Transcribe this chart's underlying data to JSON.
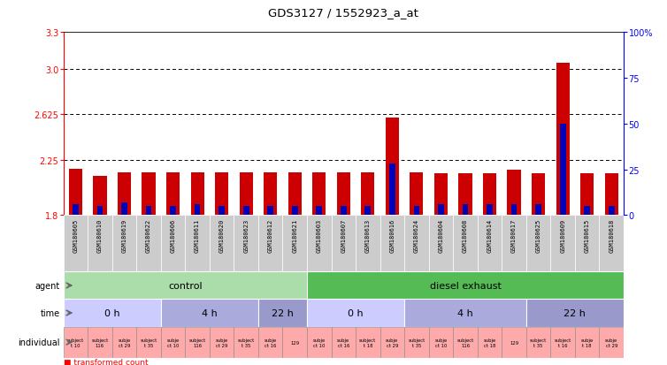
{
  "title": "GDS3127 / 1552923_a_at",
  "samples": [
    "GSM180605",
    "GSM180610",
    "GSM180619",
    "GSM180622",
    "GSM180606",
    "GSM180611",
    "GSM180620",
    "GSM180623",
    "GSM180612",
    "GSM180621",
    "GSM180603",
    "GSM180607",
    "GSM180613",
    "GSM180616",
    "GSM180624",
    "GSM180604",
    "GSM180608",
    "GSM180614",
    "GSM180617",
    "GSM180625",
    "GSM180609",
    "GSM180615",
    "GSM180618"
  ],
  "red_values": [
    2.18,
    2.12,
    2.15,
    2.15,
    2.15,
    2.15,
    2.15,
    2.15,
    2.15,
    2.15,
    2.15,
    2.15,
    2.15,
    2.6,
    2.15,
    2.14,
    2.14,
    2.14,
    2.17,
    2.14,
    3.05,
    2.14,
    2.14
  ],
  "blue_values": [
    6,
    5,
    7,
    5,
    5,
    6,
    5,
    5,
    5,
    5,
    5,
    5,
    5,
    28,
    5,
    6,
    6,
    6,
    6,
    6,
    50,
    5,
    5
  ],
  "ymin": 1.8,
  "ymax": 3.3,
  "yticks_left": [
    1.8,
    2.25,
    2.625,
    3.0,
    3.3
  ],
  "yticks_right": [
    0,
    25,
    50,
    75,
    100
  ],
  "y_right_labels": [
    "0",
    "25",
    "50",
    "75",
    "100%"
  ],
  "grid_values": [
    2.25,
    2.625,
    3.0
  ],
  "agent_groups": [
    {
      "label": "control",
      "start": 0,
      "end": 10,
      "color": "#AADDAA"
    },
    {
      "label": "diesel exhaust",
      "start": 10,
      "end": 23,
      "color": "#55BB55"
    }
  ],
  "time_groups": [
    {
      "label": "0 h",
      "start": 0,
      "end": 4,
      "color": "#CCCCFF"
    },
    {
      "label": "4 h",
      "start": 4,
      "end": 8,
      "color": "#AAAADD"
    },
    {
      "label": "22 h",
      "start": 8,
      "end": 10,
      "color": "#9999CC"
    },
    {
      "label": "0 h",
      "start": 10,
      "end": 14,
      "color": "#CCCCFF"
    },
    {
      "label": "4 h",
      "start": 14,
      "end": 19,
      "color": "#AAAADD"
    },
    {
      "label": "22 h",
      "start": 19,
      "end": 23,
      "color": "#9999CC"
    }
  ],
  "indiv_data": [
    [
      "subject\nt 10",
      0
    ],
    [
      "subject\n116",
      1
    ],
    [
      "subje\nct 29",
      2
    ],
    [
      "subject\nt 35",
      3
    ],
    [
      "subje\nct 10",
      4
    ],
    [
      "subject\n116",
      5
    ],
    [
      "subje\nct 29",
      6
    ],
    [
      "subject\nt 35",
      7
    ],
    [
      "subje\nct 16",
      8
    ],
    [
      "129",
      9
    ],
    [
      "subje\nct 10",
      10
    ],
    [
      "subje\nct 16",
      11
    ],
    [
      "subject\nt 18",
      12
    ],
    [
      "subje\nct 29",
      13
    ],
    [
      "subject\nt 35",
      14
    ],
    [
      "subje\nct 10",
      15
    ],
    [
      "subject\n116",
      16
    ],
    [
      "subje\nct 18",
      17
    ],
    [
      "129",
      18
    ],
    [
      "subject\nt 35",
      19
    ],
    [
      "subject\nt 16",
      20
    ],
    [
      "subje\nt 18",
      21
    ],
    [
      "subje\nct 29",
      22
    ]
  ],
  "bar_width": 0.55,
  "bar_color_red": "#CC0000",
  "bar_color_blue": "#0000BB",
  "background_color": "#FFFFFF",
  "indiv_color": "#FFAAAA",
  "sample_band_color": "#CCCCCC"
}
